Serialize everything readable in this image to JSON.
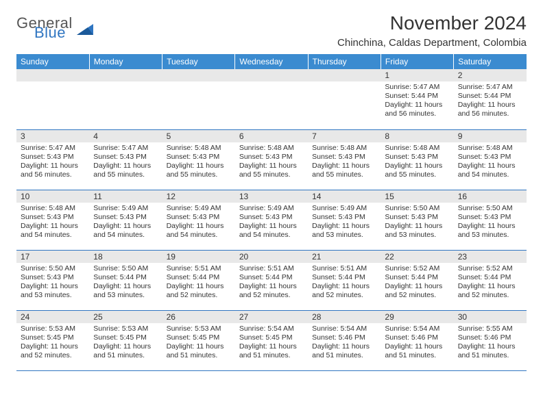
{
  "brand": {
    "general": "General",
    "blue": "Blue"
  },
  "title": "November 2024",
  "subtitle": "Chinchina, Caldas Department, Colombia",
  "colors": {
    "header_bg": "#3b8bd0",
    "header_text": "#ffffff",
    "week_divider": "#2f75c1",
    "daynum_bg": "#e8e8e8",
    "body_text": "#333333",
    "brand_blue": "#2f75c1",
    "brand_gray": "#555555",
    "page_bg": "#ffffff"
  },
  "daysOfWeek": [
    "Sunday",
    "Monday",
    "Tuesday",
    "Wednesday",
    "Thursday",
    "Friday",
    "Saturday"
  ],
  "cells": [
    {
      "day": "",
      "sunrise": "",
      "sunset": "",
      "daylight": ""
    },
    {
      "day": "",
      "sunrise": "",
      "sunset": "",
      "daylight": ""
    },
    {
      "day": "",
      "sunrise": "",
      "sunset": "",
      "daylight": ""
    },
    {
      "day": "",
      "sunrise": "",
      "sunset": "",
      "daylight": ""
    },
    {
      "day": "",
      "sunrise": "",
      "sunset": "",
      "daylight": ""
    },
    {
      "day": "1",
      "sunrise": "Sunrise: 5:47 AM",
      "sunset": "Sunset: 5:44 PM",
      "daylight": "Daylight: 11 hours and 56 minutes."
    },
    {
      "day": "2",
      "sunrise": "Sunrise: 5:47 AM",
      "sunset": "Sunset: 5:44 PM",
      "daylight": "Daylight: 11 hours and 56 minutes."
    },
    {
      "day": "3",
      "sunrise": "Sunrise: 5:47 AM",
      "sunset": "Sunset: 5:43 PM",
      "daylight": "Daylight: 11 hours and 56 minutes."
    },
    {
      "day": "4",
      "sunrise": "Sunrise: 5:47 AM",
      "sunset": "Sunset: 5:43 PM",
      "daylight": "Daylight: 11 hours and 55 minutes."
    },
    {
      "day": "5",
      "sunrise": "Sunrise: 5:48 AM",
      "sunset": "Sunset: 5:43 PM",
      "daylight": "Daylight: 11 hours and 55 minutes."
    },
    {
      "day": "6",
      "sunrise": "Sunrise: 5:48 AM",
      "sunset": "Sunset: 5:43 PM",
      "daylight": "Daylight: 11 hours and 55 minutes."
    },
    {
      "day": "7",
      "sunrise": "Sunrise: 5:48 AM",
      "sunset": "Sunset: 5:43 PM",
      "daylight": "Daylight: 11 hours and 55 minutes."
    },
    {
      "day": "8",
      "sunrise": "Sunrise: 5:48 AM",
      "sunset": "Sunset: 5:43 PM",
      "daylight": "Daylight: 11 hours and 55 minutes."
    },
    {
      "day": "9",
      "sunrise": "Sunrise: 5:48 AM",
      "sunset": "Sunset: 5:43 PM",
      "daylight": "Daylight: 11 hours and 54 minutes."
    },
    {
      "day": "10",
      "sunrise": "Sunrise: 5:48 AM",
      "sunset": "Sunset: 5:43 PM",
      "daylight": "Daylight: 11 hours and 54 minutes."
    },
    {
      "day": "11",
      "sunrise": "Sunrise: 5:49 AM",
      "sunset": "Sunset: 5:43 PM",
      "daylight": "Daylight: 11 hours and 54 minutes."
    },
    {
      "day": "12",
      "sunrise": "Sunrise: 5:49 AM",
      "sunset": "Sunset: 5:43 PM",
      "daylight": "Daylight: 11 hours and 54 minutes."
    },
    {
      "day": "13",
      "sunrise": "Sunrise: 5:49 AM",
      "sunset": "Sunset: 5:43 PM",
      "daylight": "Daylight: 11 hours and 54 minutes."
    },
    {
      "day": "14",
      "sunrise": "Sunrise: 5:49 AM",
      "sunset": "Sunset: 5:43 PM",
      "daylight": "Daylight: 11 hours and 53 minutes."
    },
    {
      "day": "15",
      "sunrise": "Sunrise: 5:50 AM",
      "sunset": "Sunset: 5:43 PM",
      "daylight": "Daylight: 11 hours and 53 minutes."
    },
    {
      "day": "16",
      "sunrise": "Sunrise: 5:50 AM",
      "sunset": "Sunset: 5:43 PM",
      "daylight": "Daylight: 11 hours and 53 minutes."
    },
    {
      "day": "17",
      "sunrise": "Sunrise: 5:50 AM",
      "sunset": "Sunset: 5:43 PM",
      "daylight": "Daylight: 11 hours and 53 minutes."
    },
    {
      "day": "18",
      "sunrise": "Sunrise: 5:50 AM",
      "sunset": "Sunset: 5:44 PM",
      "daylight": "Daylight: 11 hours and 53 minutes."
    },
    {
      "day": "19",
      "sunrise": "Sunrise: 5:51 AM",
      "sunset": "Sunset: 5:44 PM",
      "daylight": "Daylight: 11 hours and 52 minutes."
    },
    {
      "day": "20",
      "sunrise": "Sunrise: 5:51 AM",
      "sunset": "Sunset: 5:44 PM",
      "daylight": "Daylight: 11 hours and 52 minutes."
    },
    {
      "day": "21",
      "sunrise": "Sunrise: 5:51 AM",
      "sunset": "Sunset: 5:44 PM",
      "daylight": "Daylight: 11 hours and 52 minutes."
    },
    {
      "day": "22",
      "sunrise": "Sunrise: 5:52 AM",
      "sunset": "Sunset: 5:44 PM",
      "daylight": "Daylight: 11 hours and 52 minutes."
    },
    {
      "day": "23",
      "sunrise": "Sunrise: 5:52 AM",
      "sunset": "Sunset: 5:44 PM",
      "daylight": "Daylight: 11 hours and 52 minutes."
    },
    {
      "day": "24",
      "sunrise": "Sunrise: 5:53 AM",
      "sunset": "Sunset: 5:45 PM",
      "daylight": "Daylight: 11 hours and 52 minutes."
    },
    {
      "day": "25",
      "sunrise": "Sunrise: 5:53 AM",
      "sunset": "Sunset: 5:45 PM",
      "daylight": "Daylight: 11 hours and 51 minutes."
    },
    {
      "day": "26",
      "sunrise": "Sunrise: 5:53 AM",
      "sunset": "Sunset: 5:45 PM",
      "daylight": "Daylight: 11 hours and 51 minutes."
    },
    {
      "day": "27",
      "sunrise": "Sunrise: 5:54 AM",
      "sunset": "Sunset: 5:45 PM",
      "daylight": "Daylight: 11 hours and 51 minutes."
    },
    {
      "day": "28",
      "sunrise": "Sunrise: 5:54 AM",
      "sunset": "Sunset: 5:46 PM",
      "daylight": "Daylight: 11 hours and 51 minutes."
    },
    {
      "day": "29",
      "sunrise": "Sunrise: 5:54 AM",
      "sunset": "Sunset: 5:46 PM",
      "daylight": "Daylight: 11 hours and 51 minutes."
    },
    {
      "day": "30",
      "sunrise": "Sunrise: 5:55 AM",
      "sunset": "Sunset: 5:46 PM",
      "daylight": "Daylight: 11 hours and 51 minutes."
    }
  ]
}
